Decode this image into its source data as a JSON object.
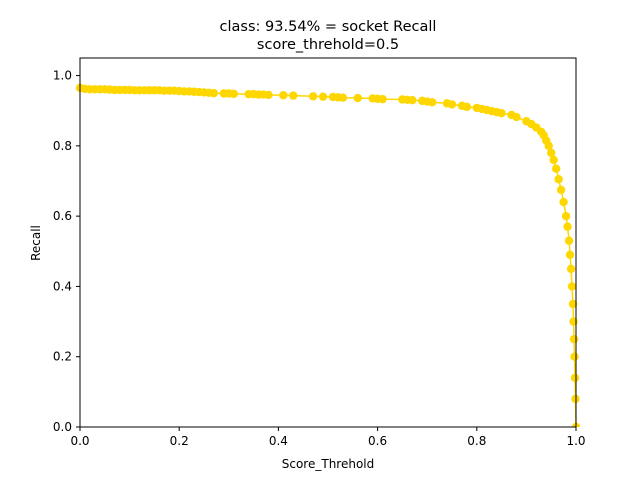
{
  "chart_data": {
    "type": "line",
    "title": "class: 93.54% = socket Recall",
    "subtitle": "score_threhold=0.5",
    "xlabel": "Score_Threhold",
    "ylabel": "Recall",
    "xlim": [
      0,
      1.0
    ],
    "ylim": [
      0,
      1.05
    ],
    "xticks": [
      0.0,
      0.2,
      0.4,
      0.6,
      0.8,
      1.0
    ],
    "xtick_labels": [
      "0.0",
      "0.2",
      "0.4",
      "0.6",
      "0.8",
      "1.0"
    ],
    "yticks": [
      0.0,
      0.2,
      0.4,
      0.6,
      0.8,
      1.0
    ],
    "ytick_labels": [
      "0.0",
      "0.2",
      "0.4",
      "0.6",
      "0.8",
      "1.0"
    ],
    "grid": false,
    "series": [
      {
        "color": "#FFD700",
        "marker": "circle",
        "x": [
          0.0,
          0.01,
          0.02,
          0.03,
          0.04,
          0.05,
          0.06,
          0.07,
          0.08,
          0.09,
          0.1,
          0.11,
          0.12,
          0.13,
          0.14,
          0.15,
          0.16,
          0.17,
          0.18,
          0.19,
          0.2,
          0.21,
          0.22,
          0.23,
          0.24,
          0.25,
          0.26,
          0.27,
          0.29,
          0.3,
          0.31,
          0.34,
          0.35,
          0.36,
          0.37,
          0.38,
          0.41,
          0.43,
          0.47,
          0.49,
          0.51,
          0.52,
          0.53,
          0.56,
          0.59,
          0.6,
          0.61,
          0.65,
          0.66,
          0.67,
          0.69,
          0.7,
          0.71,
          0.74,
          0.75,
          0.77,
          0.78,
          0.8,
          0.81,
          0.82,
          0.83,
          0.84,
          0.85,
          0.87,
          0.88,
          0.9,
          0.91,
          0.92,
          0.93,
          0.935,
          0.94,
          0.945,
          0.95,
          0.955,
          0.96,
          0.965,
          0.97,
          0.975,
          0.98,
          0.983,
          0.986,
          0.988,
          0.99,
          0.992,
          0.994,
          0.995,
          0.996,
          0.997,
          0.998,
          0.999,
          1.0
        ],
        "y": [
          0.965,
          0.962,
          0.961,
          0.961,
          0.961,
          0.961,
          0.96,
          0.959,
          0.959,
          0.959,
          0.959,
          0.958,
          0.958,
          0.958,
          0.958,
          0.958,
          0.958,
          0.957,
          0.957,
          0.957,
          0.956,
          0.955,
          0.955,
          0.954,
          0.953,
          0.952,
          0.951,
          0.95,
          0.949,
          0.949,
          0.948,
          0.947,
          0.947,
          0.946,
          0.946,
          0.945,
          0.944,
          0.943,
          0.941,
          0.94,
          0.939,
          0.938,
          0.937,
          0.936,
          0.935,
          0.934,
          0.933,
          0.932,
          0.931,
          0.93,
          0.928,
          0.926,
          0.924,
          0.921,
          0.918,
          0.914,
          0.911,
          0.908,
          0.905,
          0.902,
          0.899,
          0.896,
          0.893,
          0.888,
          0.882,
          0.87,
          0.862,
          0.852,
          0.84,
          0.83,
          0.815,
          0.8,
          0.78,
          0.76,
          0.735,
          0.705,
          0.675,
          0.64,
          0.6,
          0.57,
          0.53,
          0.49,
          0.45,
          0.4,
          0.35,
          0.3,
          0.25,
          0.2,
          0.14,
          0.08,
          0.0
        ]
      }
    ]
  }
}
